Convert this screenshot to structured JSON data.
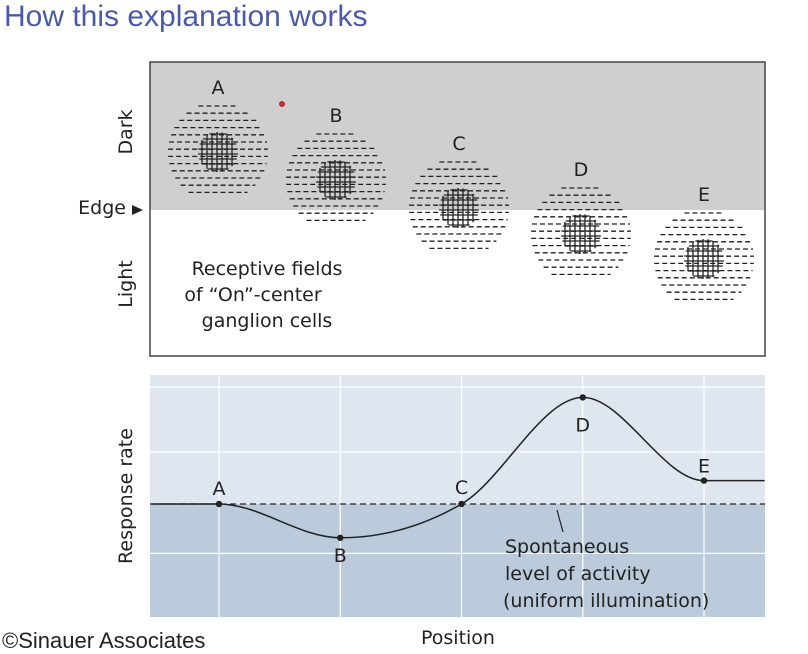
{
  "slide": {
    "title": "How this explanation works",
    "copyright": "©Sinauer Associates"
  },
  "top_panel": {
    "y_labels": {
      "dark": "Dark",
      "edge": "Edge",
      "light": "Light"
    },
    "caption": [
      "Receptive fields",
      "of “On”-center",
      "ganglion cells"
    ],
    "receptive_fields": [
      {
        "label": "A"
      },
      {
        "label": "B"
      },
      {
        "label": "C"
      },
      {
        "label": "D"
      },
      {
        "label": "E"
      }
    ],
    "colors": {
      "dark_region": "#cfcfcf",
      "light_region": "#ffffff",
      "stroke": "#222222",
      "dot": "#b83232"
    }
  },
  "chart_data": {
    "type": "line",
    "xlabel": "Position",
    "ylabel": "Response rate",
    "baseline_label": [
      "Spontaneous",
      "level of activity",
      "(uniform illumination)"
    ],
    "baseline": 0,
    "ylim": [
      -2,
      4.5
    ],
    "points": [
      {
        "label": "A",
        "x": 1,
        "y": 0
      },
      {
        "label": "B",
        "x": 2,
        "y": -1.3
      },
      {
        "label": "C",
        "x": 3,
        "y": 0
      },
      {
        "label": "D",
        "x": 4,
        "y": 4.1
      },
      {
        "label": "E",
        "x": 5,
        "y": 0.9
      }
    ],
    "grid": true,
    "colors": {
      "background": "#dfe6f0",
      "below_baseline": "#bccbdc",
      "grid": "#ffffff",
      "line": "#222222"
    }
  }
}
